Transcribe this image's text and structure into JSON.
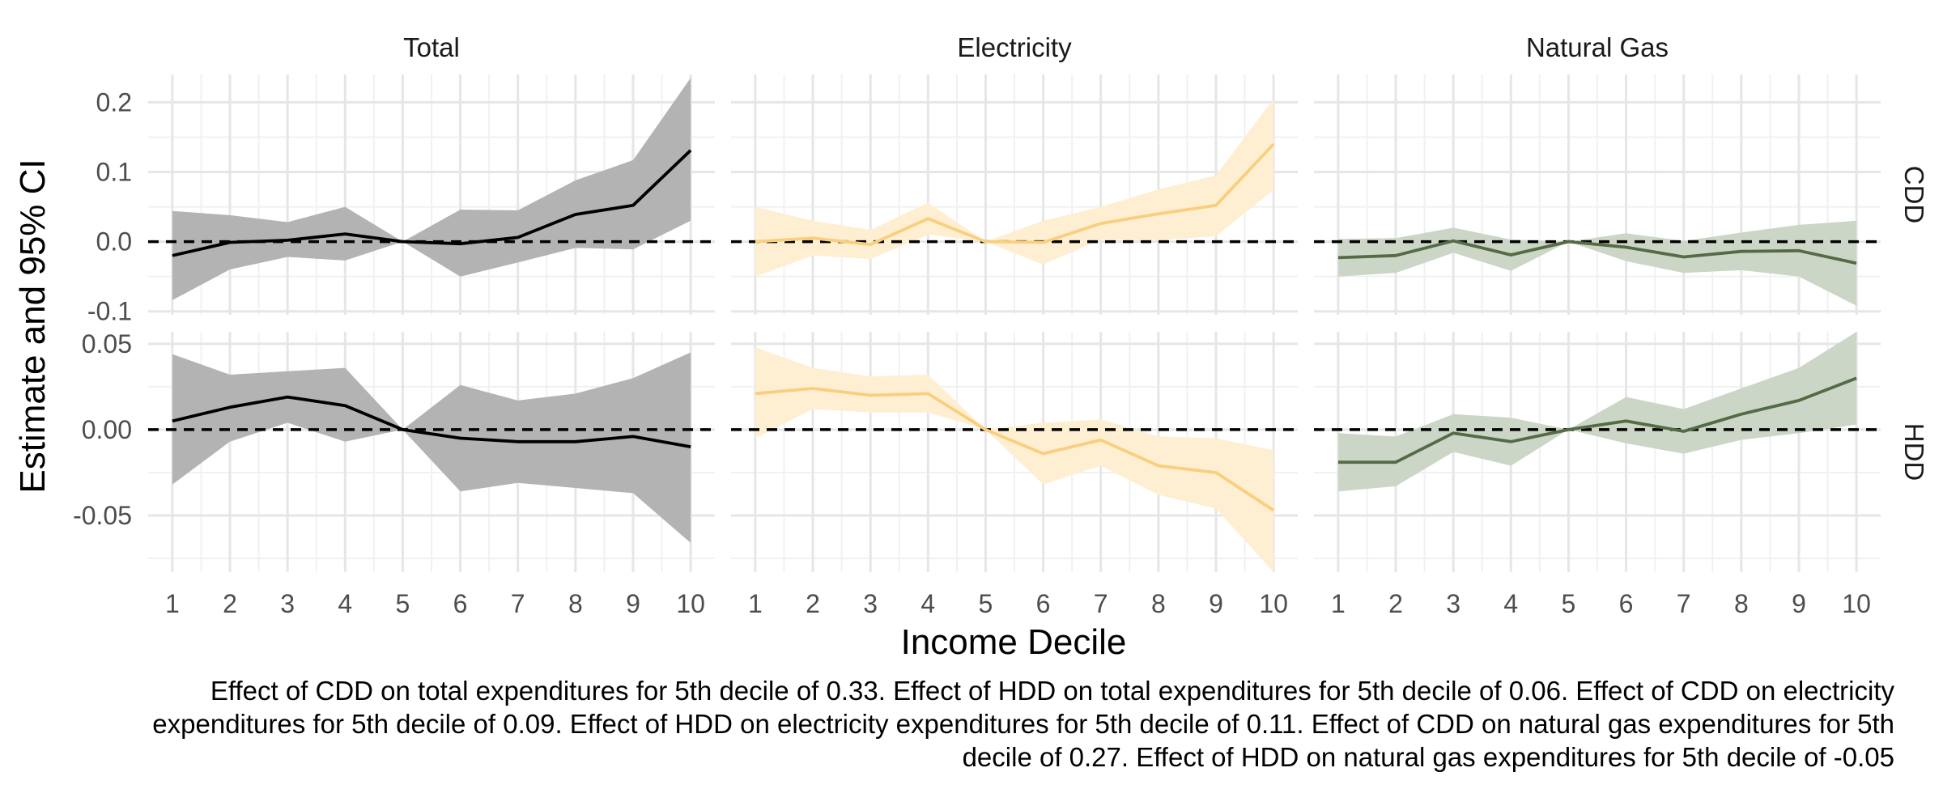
{
  "chart_data": {
    "type": "line",
    "xlabel": "Income Decile",
    "ylabel": "Estimate and 95% CI",
    "x": [
      1,
      2,
      3,
      4,
      5,
      6,
      7,
      8,
      9,
      10
    ],
    "x_ticks": [
      "1",
      "2",
      "3",
      "4",
      "5",
      "6",
      "7",
      "8",
      "9",
      "10"
    ],
    "reference_line": 0,
    "columns": [
      "Total",
      "Electricity",
      "Natural Gas"
    ],
    "rows": [
      {
        "label": "CDD",
        "ylim": [
          -0.105,
          0.24
        ],
        "ticks": [
          -0.1,
          0.0,
          0.1,
          0.2
        ],
        "tick_labels": [
          "-0.1",
          "0.0",
          "0.1",
          "0.2"
        ]
      },
      {
        "label": "HDD",
        "ylim": [
          -0.083,
          0.057
        ],
        "ticks": [
          -0.05,
          0.0,
          0.05
        ],
        "tick_labels": [
          "-0.05",
          "0.00",
          "0.05"
        ]
      }
    ],
    "series": [
      {
        "name": "Total",
        "color": "#000000",
        "fill": "#b3b3b3",
        "CDD": {
          "estimate": [
            -0.02,
            -0.001,
            0.002,
            0.011,
            0.0,
            -0.003,
            0.006,
            0.039,
            0.052,
            0.131
          ],
          "lower": [
            -0.084,
            -0.04,
            -0.022,
            -0.027,
            0.0,
            -0.05,
            -0.03,
            -0.009,
            -0.011,
            0.03
          ],
          "upper": [
            0.044,
            0.038,
            0.028,
            0.05,
            0.0,
            0.046,
            0.045,
            0.088,
            0.117,
            0.235
          ]
        },
        "HDD": {
          "estimate": [
            0.005,
            0.013,
            0.019,
            0.014,
            0.0,
            -0.005,
            -0.007,
            -0.007,
            -0.004,
            -0.01
          ],
          "lower": [
            -0.032,
            -0.007,
            0.004,
            -0.007,
            0.0,
            -0.036,
            -0.031,
            -0.034,
            -0.037,
            -0.066
          ],
          "upper": [
            0.044,
            0.032,
            0.034,
            0.036,
            0.0,
            0.026,
            0.017,
            0.021,
            0.03,
            0.045
          ]
        }
      },
      {
        "name": "Electricity",
        "color": "#f9cf7f",
        "fill": "#feefd2",
        "CDD": {
          "estimate": [
            0.0,
            0.005,
            -0.004,
            0.033,
            0.0,
            -0.001,
            0.026,
            0.04,
            0.052,
            0.14
          ],
          "lower": [
            -0.05,
            -0.02,
            -0.025,
            0.01,
            0.0,
            -0.033,
            0.003,
            0.002,
            0.008,
            0.074
          ],
          "upper": [
            0.05,
            0.03,
            0.017,
            0.056,
            0.0,
            0.03,
            0.05,
            0.075,
            0.095,
            0.205
          ]
        },
        "HDD": {
          "estimate": [
            0.021,
            0.024,
            0.02,
            0.021,
            0.0,
            -0.014,
            -0.006,
            -0.021,
            -0.025,
            -0.047
          ],
          "lower": [
            -0.005,
            0.012,
            0.01,
            0.01,
            0.0,
            -0.032,
            -0.021,
            -0.038,
            -0.046,
            -0.083
          ],
          "upper": [
            0.048,
            0.036,
            0.031,
            0.032,
            0.0,
            0.004,
            0.006,
            -0.004,
            -0.005,
            -0.012
          ]
        }
      },
      {
        "name": "Natural Gas",
        "color": "#556b45",
        "fill": "#cbd6c7",
        "CDD": {
          "estimate": [
            -0.023,
            -0.02,
            0.001,
            -0.019,
            0.0,
            -0.008,
            -0.022,
            -0.014,
            -0.013,
            -0.031
          ],
          "lower": [
            -0.05,
            -0.045,
            -0.016,
            -0.042,
            0.0,
            -0.028,
            -0.045,
            -0.041,
            -0.05,
            -0.092
          ],
          "upper": [
            0.004,
            0.005,
            0.02,
            0.003,
            0.0,
            0.012,
            0.001,
            0.013,
            0.024,
            0.03
          ]
        },
        "HDD": {
          "estimate": [
            -0.019,
            -0.019,
            -0.002,
            -0.007,
            0.0,
            0.005,
            -0.001,
            0.009,
            0.017,
            0.03
          ],
          "lower": [
            -0.036,
            -0.033,
            -0.013,
            -0.021,
            0.0,
            -0.008,
            -0.014,
            -0.006,
            -0.002,
            0.003
          ],
          "upper": [
            -0.002,
            -0.004,
            0.009,
            0.007,
            0.0,
            0.019,
            0.012,
            0.024,
            0.036,
            0.057
          ]
        }
      }
    ],
    "grid": true,
    "legend": "none",
    "caption": "Effect of CDD on total expenditures for 5th decile of 0.33. Effect of HDD on total expenditures for 5th decile of 0.06. Effect of CDD on electricity expenditures for 5th decile of 0.09. Effect of HDD on electricity expenditures for 5th decile of 0.11. Effect of CDD on natural gas expenditures for 5th decile of 0.27. Effect of HDD on natural gas expenditures for 5th decile of -0.05"
  }
}
